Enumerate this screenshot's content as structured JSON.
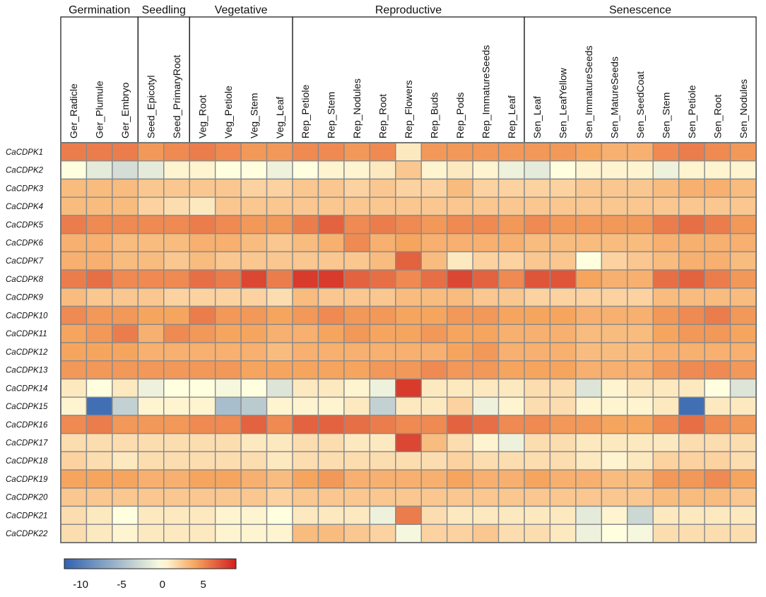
{
  "chart_data": {
    "type": "heatmap",
    "title": "",
    "stage_groups": [
      {
        "name": "Germination",
        "columns": [
          "Ger_Radicle",
          "Ger_Plumule",
          "Ger_Embryo"
        ]
      },
      {
        "name": "Seedling",
        "columns": [
          "Seed_Epicotyl",
          "Seed_PrimaryRoot"
        ]
      },
      {
        "name": "Vegetative",
        "columns": [
          "Veg_Root",
          "Veg_Petiole",
          "Veg_Stem",
          "Veg_Leaf"
        ]
      },
      {
        "name": "Reproductive",
        "columns": [
          "Rep_Petiole",
          "Rep_Stem",
          "Rep_Nodules",
          "Rep_Root",
          "Rep_Flowers",
          "Rep_Buds",
          "Rep_Pods",
          "Rep_ImmatureSeeds",
          "Rep_Leaf"
        ]
      },
      {
        "name": "Senescence",
        "columns": [
          "Sen_Leaf",
          "Sen_LeafYellow",
          "Sen_ImmatureSeeds",
          "Sen_MatureSeeds",
          "Sen_SeedCoat",
          "Sen_Stem",
          "Sen_Petiole",
          "Sen_Root",
          "Sen_Nodules"
        ]
      }
    ],
    "columns": [
      "Ger_Radicle",
      "Ger_Plumule",
      "Ger_Embryo",
      "Seed_Epicotyl",
      "Seed_PrimaryRoot",
      "Veg_Root",
      "Veg_Petiole",
      "Veg_Stem",
      "Veg_Leaf",
      "Rep_Petiole",
      "Rep_Stem",
      "Rep_Nodules",
      "Rep_Root",
      "Rep_Flowers",
      "Rep_Buds",
      "Rep_Pods",
      "Rep_ImmatureSeeds",
      "Rep_Leaf",
      "Sen_Leaf",
      "Sen_LeafYellow",
      "Sen_ImmatureSeeds",
      "Sen_MatureSeeds",
      "Sen_SeedCoat",
      "Sen_Stem",
      "Sen_Petiole",
      "Sen_Root",
      "Sen_Nodules"
    ],
    "rows": [
      "CaCDPK1",
      "CaCDPK2",
      "CaCDPK3",
      "CaCDPK4",
      "CaCDPK5",
      "CaCDPK6",
      "CaCDPK7",
      "CaCDPK8",
      "CaCDPK9",
      "CaCDPK10",
      "CaCDPK11",
      "CaCDPK12",
      "CaCDPK13",
      "CaCDPK14",
      "CaCDPK15",
      "CaCDPK16",
      "CaCDPK17",
      "CaCDPK18",
      "CaCDPK19",
      "CaCDPK20",
      "CaCDPK21",
      "CaCDPK22"
    ],
    "values": [
      [
        5.5,
        5.5,
        5.5,
        4.5,
        5,
        5.5,
        5,
        4.5,
        4.5,
        5,
        5,
        4.5,
        5,
        1,
        4.5,
        4.5,
        4.5,
        4.5,
        4.5,
        4.5,
        4,
        3.5,
        3.5,
        5,
        5.5,
        5,
        4.5
      ],
      [
        0,
        -1.5,
        -2.5,
        -1.5,
        0.5,
        0.5,
        0,
        0,
        -1,
        0,
        0.5,
        0.5,
        1,
        2.5,
        0.5,
        1,
        0.5,
        -1,
        -1.5,
        0,
        0.5,
        0.5,
        0.5,
        -1,
        0.5,
        0.5,
        0.5
      ],
      [
        3,
        3,
        3,
        2.5,
        2.5,
        2.5,
        2.5,
        2,
        2,
        2.5,
        2.5,
        2,
        2.5,
        2,
        2,
        3,
        2,
        2,
        2,
        2,
        2.5,
        2.5,
        2.5,
        3,
        3.5,
        3.5,
        3
      ],
      [
        3,
        3,
        3,
        2,
        1.5,
        1,
        2.5,
        2.5,
        2.5,
        2.5,
        2.5,
        2.5,
        2.5,
        2.5,
        2.5,
        2.5,
        2.5,
        2.5,
        2.5,
        2.5,
        2.5,
        2.5,
        2.5,
        2.5,
        2.5,
        2.5,
        2.5
      ],
      [
        5.5,
        5,
        5,
        5,
        5,
        5.5,
        5,
        4.5,
        4.5,
        5.5,
        6.5,
        5,
        5.5,
        5,
        4.5,
        5,
        5,
        4.5,
        5,
        4.5,
        4.5,
        4.5,
        4.5,
        5.5,
        6,
        5.5,
        4.5
      ],
      [
        3.5,
        3.5,
        3,
        3,
        3,
        3.5,
        3.5,
        3,
        2.5,
        3,
        3.5,
        5,
        3.5,
        4,
        3.5,
        3.5,
        3.5,
        3.5,
        3,
        3,
        3,
        3,
        3,
        3.5,
        3.5,
        3.5,
        3.5
      ],
      [
        3.5,
        3.5,
        3,
        3,
        2.5,
        3,
        2.5,
        2.5,
        2.5,
        2.5,
        2.5,
        2.5,
        3,
        6.5,
        3,
        1,
        2,
        2,
        2.5,
        2.5,
        0,
        2,
        2.5,
        3,
        3.5,
        3.5,
        3
      ],
      [
        5.5,
        6,
        5,
        5,
        5,
        6,
        5.5,
        7.5,
        5.5,
        8,
        8,
        6.5,
        6,
        5,
        6,
        7.5,
        6.5,
        5,
        7,
        7,
        4,
        3.5,
        3.5,
        6,
        6.5,
        5.5,
        4.5
      ],
      [
        3,
        2.5,
        2.5,
        2.5,
        2,
        2,
        2,
        2,
        1.5,
        3,
        2.5,
        2.5,
        2.5,
        3,
        3,
        3,
        2.5,
        2.5,
        2,
        2,
        2,
        2,
        2,
        3,
        3,
        3,
        3
      ],
      [
        5,
        4.5,
        4.5,
        4,
        4,
        5.5,
        4.5,
        4.5,
        4,
        4.5,
        5,
        4.5,
        4.5,
        4,
        4,
        4.5,
        4.5,
        4,
        4,
        4,
        3.5,
        3.5,
        3.5,
        4.5,
        5,
        5.5,
        4.5
      ],
      [
        4,
        4.5,
        5.5,
        3.5,
        5,
        4.5,
        4,
        4,
        3.5,
        3.5,
        4,
        4.5,
        4,
        4,
        4.5,
        4,
        4,
        3.5,
        3.5,
        3.5,
        3,
        3,
        3,
        4,
        4.5,
        4.5,
        4
      ],
      [
        4,
        4,
        4,
        3.5,
        3.5,
        3.5,
        3.5,
        3.5,
        3,
        3.5,
        3.5,
        3.5,
        3.5,
        3.5,
        3.5,
        4,
        4.5,
        3.5,
        3.5,
        3.5,
        3,
        3,
        3,
        3.5,
        3.5,
        3.5,
        3.5
      ],
      [
        4.5,
        4.5,
        4.5,
        4.5,
        4.5,
        4.5,
        4.5,
        4,
        4,
        4,
        4,
        4,
        4.5,
        4.5,
        5,
        4.5,
        4.5,
        4,
        4,
        4,
        3.5,
        3.5,
        3.5,
        4.5,
        5,
        5,
        4.5
      ],
      [
        1,
        0,
        1,
        -1,
        0,
        0,
        -0.5,
        0,
        -2,
        1,
        1,
        0.5,
        -1,
        8,
        1,
        1,
        1,
        1,
        1.5,
        1.5,
        -2,
        0.5,
        1,
        1,
        1,
        0,
        -2
      ],
      [
        0.5,
        -11,
        -3.5,
        0.5,
        0.5,
        0.5,
        -5,
        -4,
        0.5,
        0.5,
        0.5,
        1,
        -3.5,
        1,
        1,
        2,
        -1,
        0.5,
        1.5,
        1.5,
        0.5,
        0.5,
        0.5,
        1,
        -11,
        1,
        1
      ],
      [
        5,
        5.5,
        4.5,
        4.5,
        4.5,
        5,
        5,
        6.5,
        5,
        6.5,
        6.5,
        6,
        5.5,
        5,
        5,
        6.5,
        6,
        5,
        5,
        4.5,
        4.5,
        4,
        4,
        5,
        6,
        5,
        4.5
      ],
      [
        1.5,
        1.5,
        1.5,
        1.5,
        1.5,
        1.5,
        1.5,
        1,
        1,
        1.5,
        1.5,
        1,
        1,
        7.5,
        3,
        1.5,
        0.5,
        -1,
        1.5,
        1.5,
        1,
        1,
        1,
        1,
        1.5,
        1.5,
        1.5
      ],
      [
        2,
        1.5,
        1,
        1.5,
        1.5,
        1.5,
        1.5,
        1.5,
        1,
        1.5,
        1.5,
        1.5,
        1.5,
        1.5,
        1.5,
        2,
        1.5,
        1.5,
        1.5,
        1.5,
        1,
        0.5,
        1,
        2,
        2,
        2,
        1.5
      ],
      [
        4,
        4,
        4,
        3.5,
        3.5,
        4,
        4,
        3.5,
        3,
        4,
        4.5,
        3.5,
        3.5,
        3.5,
        3.5,
        4,
        3.5,
        3.5,
        4,
        3.5,
        3.5,
        3,
        3,
        4.5,
        4.5,
        5,
        4
      ],
      [
        2.5,
        2.5,
        2.5,
        2.5,
        2.5,
        2.5,
        2.5,
        2.5,
        2,
        2.5,
        2.5,
        2.5,
        2.5,
        2.5,
        2.5,
        2.5,
        2.5,
        2.5,
        2.5,
        2.5,
        2.5,
        2.5,
        2.5,
        3,
        3,
        3,
        2.5
      ],
      [
        1.5,
        1,
        0,
        1,
        1,
        1,
        0.5,
        0.5,
        0,
        1,
        1,
        1,
        -1,
        5.5,
        1.5,
        1,
        1,
        1,
        1,
        1,
        -1.5,
        0.5,
        -3,
        1,
        1,
        1,
        1
      ],
      [
        1.5,
        1,
        0.5,
        1,
        1,
        1,
        0.5,
        0.5,
        0.5,
        3,
        3,
        2.5,
        2,
        -0.5,
        2,
        2,
        2.5,
        1.5,
        1.5,
        1,
        -1,
        0,
        -0.5,
        1.5,
        1.5,
        1.5,
        1.5
      ]
    ],
    "colorbar": {
      "min": -12,
      "max": 9,
      "ticks": [
        -10,
        -5,
        0,
        5
      ],
      "tick_labels": [
        "-10",
        "-5",
        "0",
        "5"
      ],
      "colors": [
        "#3162b0",
        "#ffffe0",
        "#f6a55f",
        "#d01f1f"
      ]
    }
  }
}
